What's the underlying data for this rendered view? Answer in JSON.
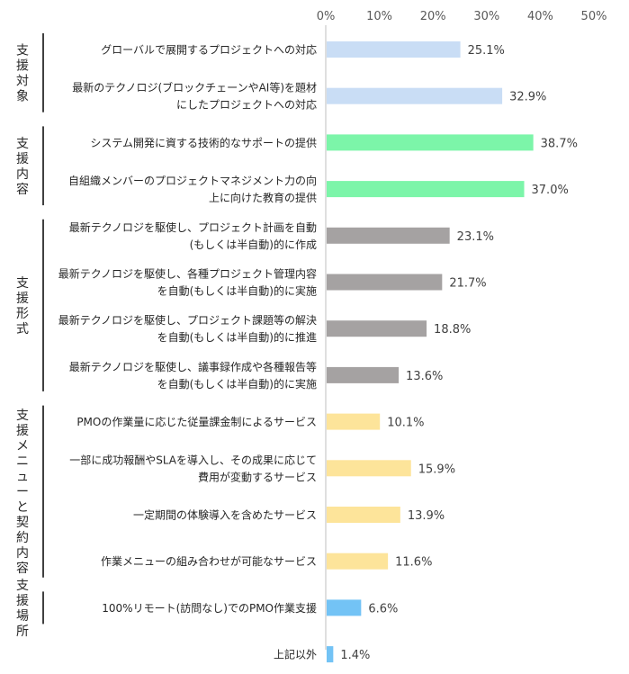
{
  "chart_data": {
    "type": "bar",
    "orientation": "horizontal",
    "xlim": [
      0,
      50
    ],
    "x_ticks": [
      "0%",
      "10%",
      "20%",
      "30%",
      "40%",
      "50%"
    ],
    "legend": "none",
    "groups": [
      {
        "label": "支援対象",
        "color": "#c9ddf5",
        "items": [
          {
            "category": [
              "グローバルで展開するプロジェクトへの対応"
            ],
            "value": 25.1,
            "value_label": "25.1%"
          },
          {
            "category": [
              "最新のテクノロジ(ブロックチェーンやAI等)を題材",
              "にしたプロジェクトへの対応"
            ],
            "value": 32.9,
            "value_label": "32.9%"
          }
        ]
      },
      {
        "label": "支援内容",
        "color": "#7cf5a9",
        "items": [
          {
            "category": [
              "システム開発に資する技術的なサポートの提供"
            ],
            "value": 38.7,
            "value_label": "38.7%"
          },
          {
            "category": [
              "自組織メンバーのプロジェクトマネジメント力の向",
              "上に向けた教育の提供"
            ],
            "value": 37.0,
            "value_label": "37.0%"
          }
        ]
      },
      {
        "label": "支援形式",
        "color": "#a5a2a2",
        "items": [
          {
            "category": [
              "最新テクノロジを駆使し、プロジェクト計画を自動",
              "(もしくは半自動)的に作成"
            ],
            "value": 23.1,
            "value_label": "23.1%"
          },
          {
            "category": [
              "最新テクノロジを駆使し、各種プロジェクト管理内容",
              "を自動(もしくは半自動)的に実施"
            ],
            "value": 21.7,
            "value_label": "21.7%"
          },
          {
            "category": [
              "最新テクノロジを駆使し、プロジェクト課題等の解決",
              "を自動(もしくは半自動)的に推進"
            ],
            "value": 18.8,
            "value_label": "18.8%"
          },
          {
            "category": [
              "最新テクノロジを駆使し、議事録作成や各種報告等",
              "を自動(もしくは半自動)的に実施"
            ],
            "value": 13.6,
            "value_label": "13.6%"
          }
        ]
      },
      {
        "label": "支援メニューと契約内容",
        "color": "#fde49a",
        "items": [
          {
            "category": [
              "PMOの作業量に応じた従量課金制によるサービス"
            ],
            "value": 10.1,
            "value_label": "10.1%"
          },
          {
            "category": [
              "一部に成功報酬やSLAを導入し、その成果に応じて",
              "費用が変動するサービス"
            ],
            "value": 15.9,
            "value_label": "15.9%"
          },
          {
            "category": [
              "一定期間の体験導入を含めたサービス"
            ],
            "value": 13.9,
            "value_label": "13.9%"
          },
          {
            "category": [
              "作業メニューの組み合わせが可能なサービス"
            ],
            "value": 11.6,
            "value_label": "11.6%"
          }
        ]
      },
      {
        "label": "支援場所",
        "color": "#73c3f5",
        "items": [
          {
            "category": [
              "100%リモート(訪問なし)でのPMO作業支援"
            ],
            "value": 6.6,
            "value_label": "6.6%"
          }
        ]
      },
      {
        "label": "",
        "color": "#73c3f5",
        "items": [
          {
            "category": [
              "上記以外"
            ],
            "value": 1.4,
            "value_label": "1.4%"
          }
        ]
      }
    ]
  }
}
